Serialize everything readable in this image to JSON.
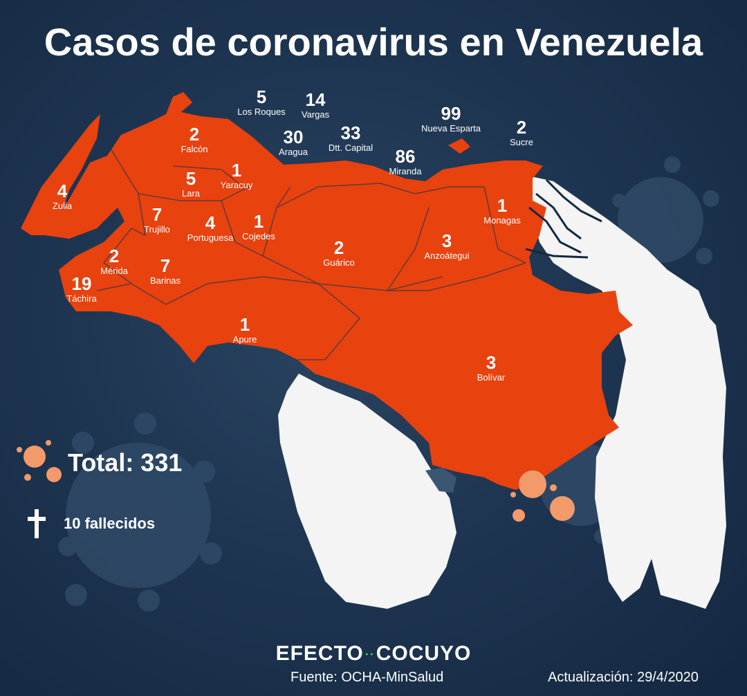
{
  "title": "Casos de coronavirus en Venezuela",
  "colors": {
    "states": "#e8420f",
    "neighbors": "#f3f4f3",
    "background": "#1d3450",
    "virus_light": "#2f4a67",
    "virus_orange": "#f29a6a"
  },
  "states": [
    {
      "id": "los-roques",
      "count": "5",
      "name": "Los Roques"
    },
    {
      "id": "vargas",
      "count": "14",
      "name": "Vargas"
    },
    {
      "id": "aragua",
      "count": "30",
      "name": "Aragua"
    },
    {
      "id": "capital",
      "count": "33",
      "name": "Dtt. Capital"
    },
    {
      "id": "nueva-esparta",
      "count": "99",
      "name": "Nueva Esparta"
    },
    {
      "id": "sucre",
      "count": "2",
      "name": "Sucre"
    },
    {
      "id": "miranda",
      "count": "86",
      "name": "Miranda"
    },
    {
      "id": "falcon",
      "count": "2",
      "name": "Falcón"
    },
    {
      "id": "yaracuy",
      "count": "1",
      "name": "Yaracuy"
    },
    {
      "id": "lara",
      "count": "5",
      "name": "Lara"
    },
    {
      "id": "zulia",
      "count": "4",
      "name": "Zulia"
    },
    {
      "id": "trujillo",
      "count": "7",
      "name": "Trujillo"
    },
    {
      "id": "portuguesa",
      "count": "4",
      "name": "Portuguesa"
    },
    {
      "id": "cojedes",
      "count": "1",
      "name": "Cojedes"
    },
    {
      "id": "monagas",
      "count": "1",
      "name": "Monagas"
    },
    {
      "id": "guarico",
      "count": "2",
      "name": "Guárico"
    },
    {
      "id": "anzoategui",
      "count": "3",
      "name": "Anzoátegui"
    },
    {
      "id": "merida",
      "count": "2",
      "name": "Mérida"
    },
    {
      "id": "barinas",
      "count": "7",
      "name": "Barinas"
    },
    {
      "id": "tachira",
      "count": "19",
      "name": "Táchira"
    },
    {
      "id": "apure",
      "count": "1",
      "name": "Apure"
    },
    {
      "id": "bolivar",
      "count": "3",
      "name": "Bolívar"
    }
  ],
  "total": "Total: 331",
  "deaths": "10 fallecidos",
  "brand": {
    "left": "EFECTO",
    "dots": "··",
    "right": "COCUYO"
  },
  "source": "Fuente: OCHA-MinSalud",
  "updated": "Actualización: 29/4/2020"
}
